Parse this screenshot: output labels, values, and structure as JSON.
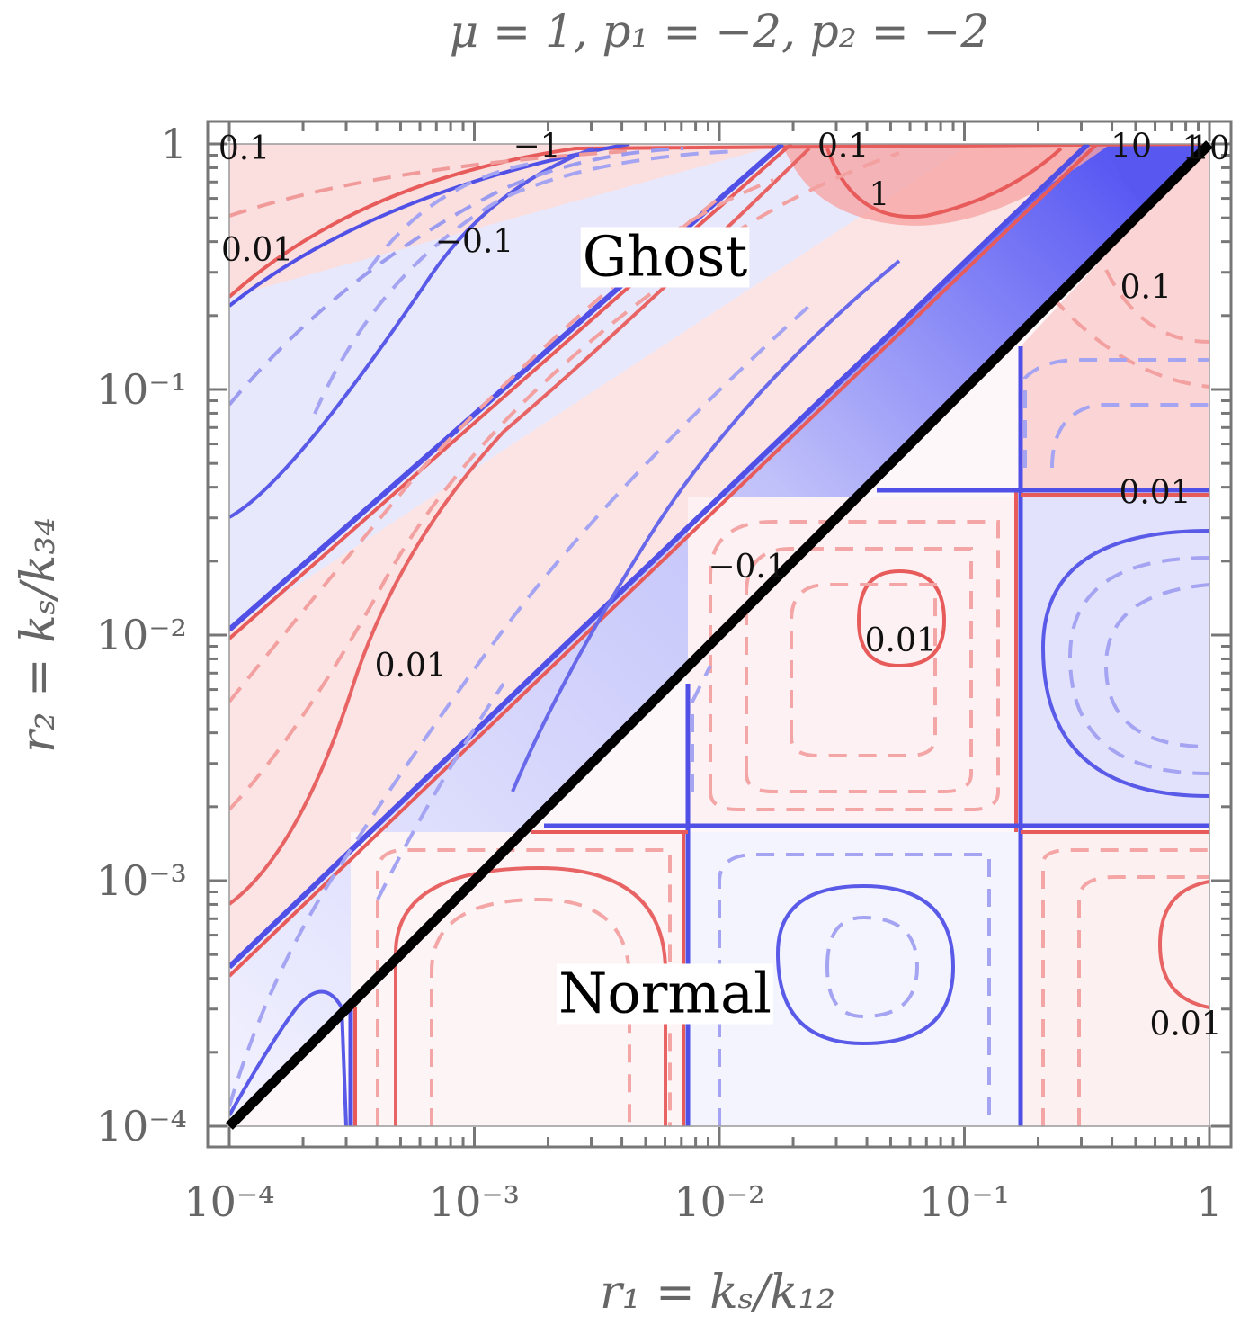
{
  "chart_data": {
    "type": "heatmap",
    "title": "μ = 1, p₁ = −2, p₂ = −2",
    "xlabel": "r₁ = kₛ/k₁₂",
    "ylabel": "r₂ = kₛ/k₃₄",
    "xscale": "log",
    "yscale": "log",
    "xlim": [
      0.0001,
      1
    ],
    "ylim": [
      0.0001,
      1
    ],
    "x_ticks": [
      {
        "value": 0.0001,
        "label": "10⁻⁴"
      },
      {
        "value": 0.001,
        "label": "10⁻³"
      },
      {
        "value": 0.01,
        "label": "10⁻²"
      },
      {
        "value": 0.1,
        "label": "10⁻¹"
      },
      {
        "value": 1,
        "label": "1"
      }
    ],
    "y_ticks": [
      {
        "value": 0.0001,
        "label": "10⁻⁴"
      },
      {
        "value": 0.001,
        "label": "10⁻³"
      },
      {
        "value": 0.01,
        "label": "10⁻²"
      },
      {
        "value": 0.1,
        "label": "10⁻¹"
      },
      {
        "value": 1,
        "label": "1"
      }
    ],
    "diagonal": {
      "from": [
        0.0001,
        0.0001
      ],
      "to": [
        1,
        1
      ],
      "color": "#000000"
    },
    "regions": [
      {
        "label": "Ghost",
        "x": 0.006,
        "y": 0.35
      },
      {
        "label": "Normal",
        "x": 0.006,
        "y": 0.00035
      }
    ],
    "contour_labels": [
      {
        "text": "0.1",
        "x": 0.000115,
        "y": 0.96
      },
      {
        "text": "−1",
        "x": 0.0018,
        "y": 0.98
      },
      {
        "text": "0.1",
        "x": 0.032,
        "y": 0.98
      },
      {
        "text": "1",
        "x": 0.045,
        "y": 0.62
      },
      {
        "text": "10",
        "x": 0.48,
        "y": 0.98
      },
      {
        "text": "1",
        "x": 0.85,
        "y": 0.96
      },
      {
        "text": "10",
        "x": 1.0,
        "y": 0.96
      },
      {
        "text": "0.01",
        "x": 0.00013,
        "y": 0.37
      },
      {
        "text": "−0.1",
        "x": 0.001,
        "y": 0.4
      },
      {
        "text": "0.1",
        "x": 0.55,
        "y": 0.26
      },
      {
        "text": "0.01",
        "x": 0.6,
        "y": 0.038
      },
      {
        "text": "−0.1",
        "x": 0.013,
        "y": 0.019
      },
      {
        "text": "0.01",
        "x": 0.055,
        "y": 0.0095
      },
      {
        "text": "0.01",
        "x": 0.00055,
        "y": 0.0075
      },
      {
        "text": "0.01",
        "x": 0.8,
        "y": 0.00026
      }
    ],
    "legend": "none",
    "grid": false,
    "colors": {
      "positive": "#ee4444",
      "negative": "#4444ee",
      "frame": "#777777"
    }
  }
}
